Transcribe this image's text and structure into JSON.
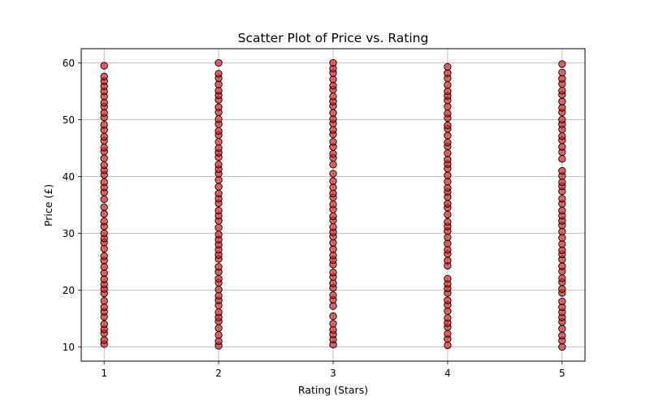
{
  "chart_data": {
    "type": "scatter",
    "title": "Scatter Plot of Price vs. Rating",
    "xlabel": "Rating (Stars)",
    "ylabel": "Price (£)",
    "xlim": [
      0.8,
      5.2
    ],
    "ylim": [
      7.5,
      62.5
    ],
    "x_ticks": [
      1,
      2,
      3,
      4,
      5
    ],
    "y_ticks": [
      10,
      20,
      30,
      40,
      50,
      60
    ],
    "grid": true,
    "marker_face_color": "#e02020",
    "marker_edge_color": "#000000",
    "series": [
      {
        "points": [
          [
            1,
            10.5
          ],
          [
            1,
            11.2
          ],
          [
            1,
            12.4
          ],
          [
            1,
            13.1
          ],
          [
            1,
            14.0
          ],
          [
            1,
            15.3
          ],
          [
            1,
            16.2
          ],
          [
            1,
            17.0
          ],
          [
            1,
            18.1
          ],
          [
            1,
            19.4
          ],
          [
            1,
            20.2
          ],
          [
            1,
            21.0
          ],
          [
            1,
            21.9
          ],
          [
            1,
            23.0
          ],
          [
            1,
            24.1
          ],
          [
            1,
            25.2
          ],
          [
            1,
            26.0
          ],
          [
            1,
            27.3
          ],
          [
            1,
            28.4
          ],
          [
            1,
            29.1
          ],
          [
            1,
            30.0
          ],
          [
            1,
            31.2
          ],
          [
            1,
            32.1
          ],
          [
            1,
            33.4
          ],
          [
            1,
            34.6
          ],
          [
            1,
            36.0
          ],
          [
            1,
            37.2
          ],
          [
            1,
            38.1
          ],
          [
            1,
            39.0
          ],
          [
            1,
            40.3
          ],
          [
            1,
            41.1
          ],
          [
            1,
            42.0
          ],
          [
            1,
            43.2
          ],
          [
            1,
            44.4
          ],
          [
            1,
            45.1
          ],
          [
            1,
            46.3
          ],
          [
            1,
            47.0
          ],
          [
            1,
            48.2
          ],
          [
            1,
            49.1
          ],
          [
            1,
            50.4
          ],
          [
            1,
            51.2
          ],
          [
            1,
            52.3
          ],
          [
            1,
            53.0
          ],
          [
            1,
            54.1
          ],
          [
            1,
            55.0
          ],
          [
            1,
            55.9
          ],
          [
            1,
            56.8
          ],
          [
            1,
            57.6
          ],
          [
            1,
            59.5
          ],
          [
            2,
            10.2
          ],
          [
            2,
            11.0
          ],
          [
            2,
            12.1
          ],
          [
            2,
            13.3
          ],
          [
            2,
            14.5
          ],
          [
            2,
            15.2
          ],
          [
            2,
            16.1
          ],
          [
            2,
            17.3
          ],
          [
            2,
            18.2
          ],
          [
            2,
            19.0
          ],
          [
            2,
            20.1
          ],
          [
            2,
            21.3
          ],
          [
            2,
            22.0
          ],
          [
            2,
            23.2
          ],
          [
            2,
            24.1
          ],
          [
            2,
            25.5
          ],
          [
            2,
            26.2
          ],
          [
            2,
            27.1
          ],
          [
            2,
            28.0
          ],
          [
            2,
            28.9
          ],
          [
            2,
            29.8
          ],
          [
            2,
            31.0
          ],
          [
            2,
            32.2
          ],
          [
            2,
            33.1
          ],
          [
            2,
            34.0
          ],
          [
            2,
            35.3
          ],
          [
            2,
            36.1
          ],
          [
            2,
            37.0
          ],
          [
            2,
            38.2
          ],
          [
            2,
            39.4
          ],
          [
            2,
            40.5
          ],
          [
            2,
            41.3
          ],
          [
            2,
            42.1
          ],
          [
            2,
            43.4
          ],
          [
            2,
            44.2
          ],
          [
            2,
            45.0
          ],
          [
            2,
            46.1
          ],
          [
            2,
            47.3
          ],
          [
            2,
            48.0
          ],
          [
            2,
            49.2
          ],
          [
            2,
            50.1
          ],
          [
            2,
            51.3
          ],
          [
            2,
            52.2
          ],
          [
            2,
            53.5
          ],
          [
            2,
            54.3
          ],
          [
            2,
            55.1
          ],
          [
            2,
            56.2
          ],
          [
            2,
            57.3
          ],
          [
            2,
            58.1
          ],
          [
            2,
            60.0
          ],
          [
            3,
            10.4
          ],
          [
            3,
            11.3
          ],
          [
            3,
            12.2
          ],
          [
            3,
            13.0
          ],
          [
            3,
            14.1
          ],
          [
            3,
            15.4
          ],
          [
            3,
            17.2
          ],
          [
            3,
            18.3
          ],
          [
            3,
            19.1
          ],
          [
            3,
            20.4
          ],
          [
            3,
            21.2
          ],
          [
            3,
            22.3
          ],
          [
            3,
            23.1
          ],
          [
            3,
            24.5
          ],
          [
            3,
            25.3
          ],
          [
            3,
            26.1
          ],
          [
            3,
            27.2
          ],
          [
            3,
            28.3
          ],
          [
            3,
            29.4
          ],
          [
            3,
            30.2
          ],
          [
            3,
            31.1
          ],
          [
            3,
            32.3
          ],
          [
            3,
            33.0
          ],
          [
            3,
            34.2
          ],
          [
            3,
            35.1
          ],
          [
            3,
            36.3
          ],
          [
            3,
            37.0
          ],
          [
            3,
            38.1
          ],
          [
            3,
            39.2
          ],
          [
            3,
            40.5
          ],
          [
            3,
            42.1
          ],
          [
            3,
            43.3
          ],
          [
            3,
            44.0
          ],
          [
            3,
            45.2
          ],
          [
            3,
            46.1
          ],
          [
            3,
            47.4
          ],
          [
            3,
            48.2
          ],
          [
            3,
            49.3
          ],
          [
            3,
            50.1
          ],
          [
            3,
            51.2
          ],
          [
            3,
            52.4
          ],
          [
            3,
            53.2
          ],
          [
            3,
            54.1
          ],
          [
            3,
            55.3
          ],
          [
            3,
            56.0
          ],
          [
            3,
            57.1
          ],
          [
            3,
            58.2
          ],
          [
            3,
            59.0
          ],
          [
            3,
            60.0
          ],
          [
            4,
            10.3
          ],
          [
            4,
            11.4
          ],
          [
            4,
            12.3
          ],
          [
            4,
            13.5
          ],
          [
            4,
            14.2
          ],
          [
            4,
            15.1
          ],
          [
            4,
            16.3
          ],
          [
            4,
            17.4
          ],
          [
            4,
            18.2
          ],
          [
            4,
            19.5
          ],
          [
            4,
            20.3
          ],
          [
            4,
            21.1
          ],
          [
            4,
            22.0
          ],
          [
            4,
            24.3
          ],
          [
            4,
            25.2
          ],
          [
            4,
            26.4
          ],
          [
            4,
            27.1
          ],
          [
            4,
            28.2
          ],
          [
            4,
            29.3
          ],
          [
            4,
            30.4
          ],
          [
            4,
            31.2
          ],
          [
            4,
            32.0
          ],
          [
            4,
            33.3
          ],
          [
            4,
            34.5
          ],
          [
            4,
            35.2
          ],
          [
            4,
            36.4
          ],
          [
            4,
            37.3
          ],
          [
            4,
            38.0
          ],
          [
            4,
            39.1
          ],
          [
            4,
            40.2
          ],
          [
            4,
            41.4
          ],
          [
            4,
            42.2
          ],
          [
            4,
            43.0
          ],
          [
            4,
            44.1
          ],
          [
            4,
            45.3
          ],
          [
            4,
            46.0
          ],
          [
            4,
            47.2
          ],
          [
            4,
            48.4
          ],
          [
            4,
            49.0
          ],
          [
            4,
            50.3
          ],
          [
            4,
            51.1
          ],
          [
            4,
            52.3
          ],
          [
            4,
            53.4
          ],
          [
            4,
            54.2
          ],
          [
            4,
            55.0
          ],
          [
            4,
            56.1
          ],
          [
            4,
            57.3
          ],
          [
            4,
            58.2
          ],
          [
            4,
            59.3
          ],
          [
            5,
            10.0
          ],
          [
            5,
            11.1
          ],
          [
            5,
            12.0
          ],
          [
            5,
            13.2
          ],
          [
            5,
            14.4
          ],
          [
            5,
            15.2
          ],
          [
            5,
            16.1
          ],
          [
            5,
            17.0
          ],
          [
            5,
            18.0
          ],
          [
            5,
            19.5
          ],
          [
            5,
            20.2
          ],
          [
            5,
            21.4
          ],
          [
            5,
            22.1
          ],
          [
            5,
            23.3
          ],
          [
            5,
            24.2
          ],
          [
            5,
            25.4
          ],
          [
            5,
            26.3
          ],
          [
            5,
            27.0
          ],
          [
            5,
            28.1
          ],
          [
            5,
            29.2
          ],
          [
            5,
            30.3
          ],
          [
            5,
            31.4
          ],
          [
            5,
            32.2
          ],
          [
            5,
            33.1
          ],
          [
            5,
            34.0
          ],
          [
            5,
            35.2
          ],
          [
            5,
            36.1
          ],
          [
            5,
            37.4
          ],
          [
            5,
            38.3
          ],
          [
            5,
            39.0
          ],
          [
            5,
            40.1
          ],
          [
            5,
            41.0
          ],
          [
            5,
            43.1
          ],
          [
            5,
            44.3
          ],
          [
            5,
            45.2
          ],
          [
            5,
            46.4
          ],
          [
            5,
            47.1
          ],
          [
            5,
            48.3
          ],
          [
            5,
            49.2
          ],
          [
            5,
            50.0
          ],
          [
            5,
            51.3
          ],
          [
            5,
            52.1
          ],
          [
            5,
            53.2
          ],
          [
            5,
            54.4
          ],
          [
            5,
            55.1
          ],
          [
            5,
            56.3
          ],
          [
            5,
            57.2
          ],
          [
            5,
            58.3
          ],
          [
            5,
            59.8
          ]
        ]
      }
    ]
  }
}
